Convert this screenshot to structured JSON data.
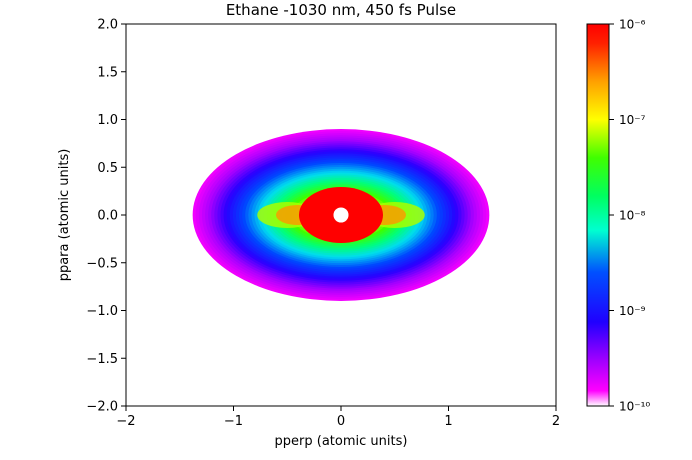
{
  "chart_data": {
    "type": "heatmap",
    "title": "Ethane -1030 nm, 450 fs Pulse",
    "xlabel": "pperp (atomic units)",
    "ylabel": "ppara (atomic units)",
    "xlim": [
      -2,
      2
    ],
    "ylim": [
      -2,
      2
    ],
    "xticks": [
      -2,
      -1,
      0,
      1,
      2
    ],
    "xtick_labels": [
      "−2",
      "−1",
      "0",
      "1",
      "2"
    ],
    "yticks": [
      -2.0,
      -1.5,
      -1.0,
      -0.5,
      0.0,
      0.5,
      1.0,
      1.5,
      2.0
    ],
    "ytick_labels": [
      "−2.0",
      "−1.5",
      "−1.0",
      "−0.5",
      "0.0",
      "0.5",
      "1.0",
      "1.5",
      "2.0"
    ],
    "colorbar": {
      "scale": "log",
      "range": [
        1e-10,
        1e-06
      ],
      "colormap": "gist_rainbow",
      "ticks": [
        1e-10,
        1e-09,
        1e-08,
        1e-07,
        1e-06
      ],
      "tick_labels": [
        "10⁻¹⁰",
        "10⁻⁹",
        "10⁻⁸",
        "10⁻⁷",
        "10⁻⁶"
      ]
    },
    "distribution": {
      "shape": "ellipse",
      "extent_pperp": 1.38,
      "extent_ppara": 0.9,
      "peak_value": 1e-06,
      "edge_value": 1e-10,
      "center_hole_radius": 0.07,
      "side_lobes_pperp": [
        -0.5,
        0.5
      ]
    },
    "grid": false
  }
}
